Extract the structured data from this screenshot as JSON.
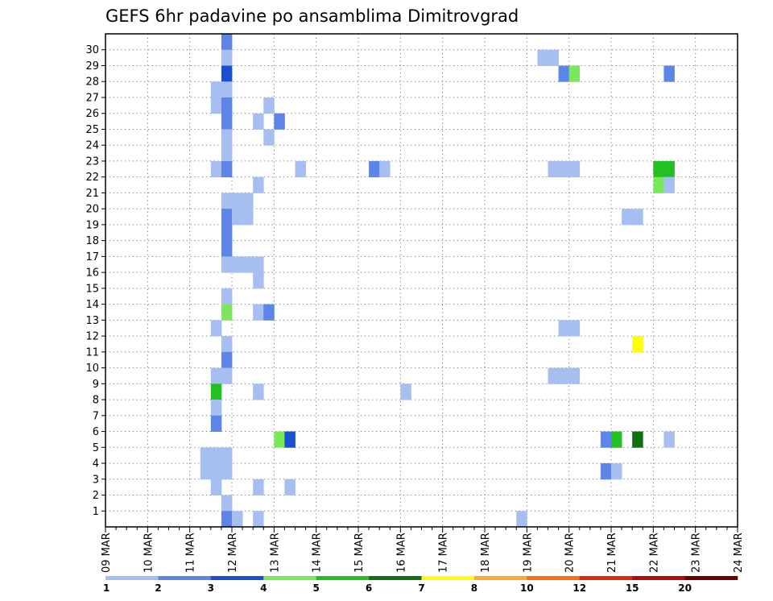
{
  "chart_data": {
    "type": "heatmap",
    "title": "GEFS 6hr padavine po ansamblima Dimitrovgrad",
    "x_tick_labels": [
      "09 MAR",
      "10 MAR",
      "11 MAR",
      "12 MAR",
      "13 MAR",
      "14 MAR",
      "15 MAR",
      "16 MAR",
      "17 MAR",
      "18 MAR",
      "19 MAR",
      "20 MAR",
      "21 MAR",
      "22 MAR",
      "23 MAR",
      "24 MAR"
    ],
    "y_tick_labels": [
      "1",
      "2",
      "3",
      "4",
      "5",
      "6",
      "7",
      "8",
      "9",
      "10",
      "11",
      "12",
      "13",
      "14",
      "15",
      "16",
      "17",
      "18",
      "19",
      "20",
      "21",
      "22",
      "23",
      "24",
      "25",
      "26",
      "27",
      "28",
      "29",
      "30"
    ],
    "x_unit": "6-hour steps from 09 MAR 00 UTC",
    "grid": "dotted",
    "legend": {
      "position": "bottom",
      "labels": [
        "1",
        "2",
        "3",
        "4",
        "5",
        "6",
        "7",
        "8",
        "10",
        "12",
        "15",
        "20"
      ],
      "colors": [
        "#a7bff0",
        "#5d85e8",
        "#1c4ed2",
        "#7ae85a",
        "#22c022",
        "#0e700e",
        "#ffff00",
        "#ffa830",
        "#ff6e0a",
        "#e0280f",
        "#b00c0c",
        "#6a0000"
      ]
    },
    "cells": [
      [
        11,
        30,
        1
      ],
      [
        11,
        29,
        0
      ],
      [
        11,
        28,
        2
      ],
      [
        10,
        27,
        0
      ],
      [
        11,
        27,
        0
      ],
      [
        10,
        26,
        0
      ],
      [
        11,
        26,
        1
      ],
      [
        11,
        25,
        1
      ],
      [
        11,
        24,
        0
      ],
      [
        11,
        23,
        0
      ],
      [
        10,
        22,
        0
      ],
      [
        11,
        22,
        1
      ],
      [
        11,
        20,
        0
      ],
      [
        11,
        19,
        1
      ],
      [
        11,
        18,
        1
      ],
      [
        11,
        17,
        1
      ],
      [
        11,
        16,
        0
      ],
      [
        11,
        14,
        0
      ],
      [
        11,
        13,
        3
      ],
      [
        10,
        12,
        0
      ],
      [
        11,
        11,
        0
      ],
      [
        11,
        10,
        1
      ],
      [
        10,
        9,
        0
      ],
      [
        11,
        9,
        0
      ],
      [
        10,
        8,
        4
      ],
      [
        10,
        7,
        0
      ],
      [
        10,
        6,
        1
      ],
      [
        9,
        4,
        0
      ],
      [
        10,
        4,
        0
      ],
      [
        11,
        4,
        0
      ],
      [
        9,
        3,
        0
      ],
      [
        10,
        3,
        0
      ],
      [
        11,
        3,
        0
      ],
      [
        10,
        2,
        0
      ],
      [
        11,
        1,
        0
      ],
      [
        11,
        0,
        1
      ],
      [
        12,
        0,
        0
      ],
      [
        15,
        26,
        0
      ],
      [
        14,
        25,
        0
      ],
      [
        16,
        25,
        1
      ],
      [
        15,
        24,
        0
      ],
      [
        14,
        21,
        0
      ],
      [
        12,
        20,
        0
      ],
      [
        13,
        20,
        0
      ],
      [
        12,
        19,
        0
      ],
      [
        13,
        19,
        0
      ],
      [
        12,
        16,
        0
      ],
      [
        13,
        16,
        0
      ],
      [
        14,
        16,
        0
      ],
      [
        14,
        15,
        0
      ],
      [
        14,
        13,
        0
      ],
      [
        15,
        13,
        1
      ],
      [
        14,
        8,
        0
      ],
      [
        16,
        5,
        3
      ],
      [
        17,
        5,
        2
      ],
      [
        14,
        2,
        0
      ],
      [
        17,
        2,
        0
      ],
      [
        14,
        0,
        0
      ],
      [
        18,
        22,
        0
      ],
      [
        25,
        22,
        1
      ],
      [
        26,
        22,
        0
      ],
      [
        28,
        8,
        0
      ],
      [
        39,
        0,
        0
      ],
      [
        41,
        29,
        0
      ],
      [
        42,
        29,
        0
      ],
      [
        43,
        28,
        1
      ],
      [
        44,
        28,
        3
      ],
      [
        42,
        22,
        0
      ],
      [
        43,
        22,
        0
      ],
      [
        44,
        22,
        0
      ],
      [
        43,
        12,
        0
      ],
      [
        44,
        12,
        0
      ],
      [
        42,
        9,
        0
      ],
      [
        43,
        9,
        0
      ],
      [
        44,
        9,
        0
      ],
      [
        47,
        5,
        1
      ],
      [
        48,
        5,
        4
      ],
      [
        50,
        5,
        5
      ],
      [
        47,
        3,
        1
      ],
      [
        48,
        3,
        0
      ],
      [
        49,
        19,
        0
      ],
      [
        50,
        19,
        0
      ],
      [
        50,
        11,
        6
      ],
      [
        53,
        28,
        1
      ],
      [
        52,
        22,
        4
      ],
      [
        53,
        22,
        4
      ],
      [
        52,
        21,
        3
      ],
      [
        53,
        21,
        0
      ],
      [
        53,
        5,
        0
      ]
    ]
  }
}
